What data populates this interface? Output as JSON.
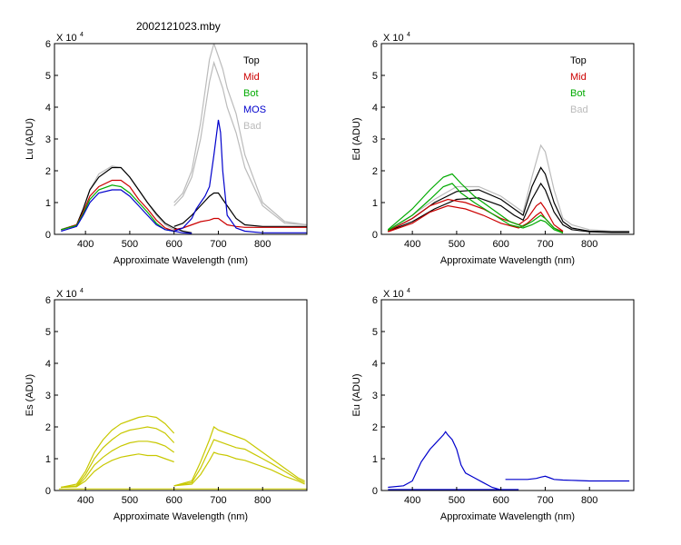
{
  "figure": {
    "title": "2002121023.mby"
  },
  "chart_data": [
    {
      "id": "lu",
      "type": "line",
      "ylabel": "Lu (ADU)",
      "xlabel": "Approximate Wavelength (nm)",
      "xlim": [
        330,
        900
      ],
      "ylim": [
        0,
        6
      ],
      "xticks": [
        "400",
        "500",
        "600",
        "700",
        "800"
      ],
      "yticks": [
        "0",
        "1",
        "2",
        "3",
        "4",
        "5",
        "6"
      ],
      "ymultiplier": "X 10",
      "ymultiplier_exp": "4",
      "legend": [
        {
          "label": "Top",
          "color": "#000000"
        },
        {
          "label": "Mid",
          "color": "#cc0000"
        },
        {
          "label": "Bot",
          "color": "#00aa00"
        },
        {
          "label": "MOS",
          "color": "#0000cc"
        },
        {
          "label": "Bad",
          "color": "#bbbbbb"
        }
      ],
      "series": [
        {
          "name": "Bad",
          "color": "#bbbbbb",
          "x": [
            345,
            380,
            395,
            410,
            430,
            460,
            480,
            500,
            520,
            540,
            560,
            580,
            600
          ],
          "y": [
            0.15,
            0.3,
            0.8,
            1.4,
            1.9,
            2.15,
            2.1,
            1.8,
            1.4,
            1.0,
            0.6,
            0.3,
            0.15
          ]
        },
        {
          "name": "Bad",
          "color": "#bbbbbb",
          "x": [
            600,
            620,
            640,
            660,
            680,
            690,
            700,
            710,
            720,
            740,
            760,
            800,
            850,
            900
          ],
          "y": [
            1.0,
            1.3,
            2.0,
            3.5,
            5.5,
            6.0,
            5.6,
            5.2,
            4.6,
            3.8,
            2.5,
            1.0,
            0.4,
            0.3
          ]
        },
        {
          "name": "Bad",
          "color": "#bbbbbb",
          "x": [
            600,
            620,
            640,
            660,
            680,
            690,
            700,
            710,
            720,
            740,
            760,
            800,
            850,
            900
          ],
          "y": [
            0.9,
            1.2,
            1.8,
            3.0,
            4.8,
            5.4,
            5.0,
            4.6,
            4.0,
            3.2,
            2.1,
            0.9,
            0.35,
            0.3
          ]
        },
        {
          "name": "Top",
          "color": "#000000",
          "x": [
            345,
            380,
            395,
            410,
            430,
            460,
            480,
            500,
            520,
            540,
            560,
            580,
            600,
            620,
            640
          ],
          "y": [
            0.15,
            0.3,
            0.8,
            1.4,
            1.8,
            2.1,
            2.1,
            1.8,
            1.4,
            1.0,
            0.65,
            0.35,
            0.2,
            0.1,
            0.05
          ]
        },
        {
          "name": "Top",
          "color": "#000000",
          "x": [
            600,
            620,
            640,
            660,
            680,
            690,
            700,
            710,
            720,
            740,
            760,
            800,
            850,
            900
          ],
          "y": [
            0.25,
            0.35,
            0.6,
            0.9,
            1.2,
            1.3,
            1.3,
            1.1,
            0.9,
            0.5,
            0.3,
            0.25,
            0.25,
            0.25
          ]
        },
        {
          "name": "Mid",
          "color": "#cc0000",
          "x": [
            345,
            380,
            395,
            410,
            430,
            460,
            480,
            500,
            520,
            540,
            560,
            580,
            600
          ],
          "y": [
            0.15,
            0.3,
            0.7,
            1.2,
            1.5,
            1.7,
            1.7,
            1.5,
            1.1,
            0.8,
            0.45,
            0.2,
            0.1
          ]
        },
        {
          "name": "Mid",
          "color": "#cc0000",
          "x": [
            600,
            620,
            640,
            660,
            680,
            690,
            700,
            710,
            720,
            740,
            760,
            800,
            850,
            900
          ],
          "y": [
            0.15,
            0.2,
            0.3,
            0.4,
            0.45,
            0.5,
            0.5,
            0.4,
            0.3,
            0.25,
            0.22,
            0.22,
            0.22,
            0.22
          ]
        },
        {
          "name": "Bot",
          "color": "#00aa00",
          "x": [
            345,
            380,
            395,
            410,
            430,
            460,
            480,
            500,
            520,
            540,
            560,
            580,
            600
          ],
          "y": [
            0.15,
            0.28,
            0.65,
            1.1,
            1.4,
            1.55,
            1.5,
            1.3,
            1.0,
            0.7,
            0.35,
            0.15,
            0.1
          ]
        },
        {
          "name": "MOS",
          "color": "#0000cc",
          "x": [
            345,
            380,
            395,
            410,
            430,
            460,
            480,
            500,
            520,
            540,
            560,
            580,
            600,
            620,
            640
          ],
          "y": [
            0.1,
            0.25,
            0.6,
            1.0,
            1.3,
            1.4,
            1.4,
            1.2,
            0.9,
            0.6,
            0.3,
            0.15,
            0.1,
            0.05,
            0.03
          ]
        },
        {
          "name": "MOS",
          "color": "#0000cc",
          "x": [
            600,
            620,
            640,
            650,
            660,
            670,
            680,
            690,
            700,
            705,
            710,
            720,
            740,
            760,
            800,
            850,
            900
          ],
          "y": [
            0.1,
            0.2,
            0.5,
            0.8,
            1.0,
            1.2,
            1.5,
            2.5,
            3.6,
            3.2,
            2.0,
            0.6,
            0.2,
            0.1,
            0.05,
            0.05,
            0.05
          ]
        }
      ]
    },
    {
      "id": "ed",
      "type": "line",
      "ylabel": "Ed (ADU)",
      "xlabel": "Approximate Wavelength (nm)",
      "xlim": [
        330,
        900
      ],
      "ylim": [
        0,
        6
      ],
      "xticks": [
        "400",
        "500",
        "600",
        "700",
        "800"
      ],
      "yticks": [
        "0",
        "1",
        "2",
        "3",
        "4",
        "5",
        "6"
      ],
      "ymultiplier": "X 10",
      "ymultiplier_exp": "4",
      "legend": [
        {
          "label": "Top",
          "color": "#000000"
        },
        {
          "label": "Mid",
          "color": "#cc0000"
        },
        {
          "label": "Bot",
          "color": "#00aa00"
        },
        {
          "label": "Bad",
          "color": "#bbbbbb"
        }
      ],
      "series": [
        {
          "name": "Bad",
          "color": "#bbbbbb",
          "x": [
            345,
            400,
            450,
            500,
            550,
            600,
            630,
            650,
            670,
            690,
            700,
            720,
            740,
            760,
            800,
            850,
            890
          ],
          "y": [
            0.15,
            0.6,
            1.1,
            1.5,
            1.5,
            1.2,
            0.9,
            0.7,
            1.8,
            2.8,
            2.6,
            1.4,
            0.5,
            0.3,
            0.15,
            0.1,
            0.1
          ]
        },
        {
          "name": "Top",
          "color": "#000000",
          "x": [
            345,
            400,
            450,
            500,
            550,
            600,
            630,
            650,
            670,
            690,
            700,
            720,
            740,
            760,
            800,
            850,
            890
          ],
          "y": [
            0.1,
            0.5,
            1.0,
            1.35,
            1.4,
            1.1,
            0.8,
            0.6,
            1.5,
            2.1,
            1.9,
            1.0,
            0.4,
            0.2,
            0.1,
            0.08,
            0.08
          ]
        },
        {
          "name": "Top",
          "color": "#000000",
          "x": [
            345,
            400,
            450,
            500,
            550,
            600,
            630,
            650,
            670,
            690,
            700,
            720,
            740,
            760,
            800,
            850,
            890
          ],
          "y": [
            0.1,
            0.4,
            0.8,
            1.1,
            1.15,
            0.9,
            0.6,
            0.45,
            1.1,
            1.6,
            1.4,
            0.7,
            0.3,
            0.15,
            0.08,
            0.06,
            0.06
          ]
        },
        {
          "name": "Mid",
          "color": "#cc0000",
          "x": [
            345,
            400,
            440,
            480,
            520,
            560,
            600,
            640,
            660,
            680,
            690,
            700,
            720,
            740
          ],
          "y": [
            0.1,
            0.5,
            0.9,
            1.1,
            1.0,
            0.8,
            0.5,
            0.3,
            0.5,
            0.9,
            1.0,
            0.8,
            0.3,
            0.1
          ]
        },
        {
          "name": "Mid",
          "color": "#cc0000",
          "x": [
            345,
            400,
            440,
            480,
            520,
            560,
            600,
            640,
            660,
            680,
            690,
            700,
            720,
            740
          ],
          "y": [
            0.08,
            0.35,
            0.7,
            0.9,
            0.8,
            0.6,
            0.35,
            0.2,
            0.35,
            0.6,
            0.7,
            0.5,
            0.2,
            0.08
          ]
        },
        {
          "name": "Bot",
          "color": "#00aa00",
          "x": [
            345,
            400,
            440,
            470,
            490,
            510,
            540,
            580,
            620,
            650,
            670,
            690,
            700,
            720,
            740
          ],
          "y": [
            0.15,
            0.8,
            1.4,
            1.8,
            1.9,
            1.6,
            1.2,
            0.8,
            0.4,
            0.25,
            0.4,
            0.6,
            0.5,
            0.2,
            0.05
          ]
        },
        {
          "name": "Bot",
          "color": "#00aa00",
          "x": [
            345,
            400,
            440,
            470,
            490,
            510,
            540,
            580,
            620,
            650,
            670,
            690,
            700,
            720,
            740
          ],
          "y": [
            0.12,
            0.6,
            1.1,
            1.5,
            1.6,
            1.3,
            1.0,
            0.65,
            0.3,
            0.2,
            0.3,
            0.45,
            0.4,
            0.15,
            0.04
          ]
        }
      ]
    },
    {
      "id": "es",
      "type": "line",
      "ylabel": "Es (ADU)",
      "xlabel": "Approximate Wavelength (nm)",
      "xlim": [
        330,
        900
      ],
      "ylim": [
        0,
        6
      ],
      "xticks": [
        "400",
        "500",
        "600",
        "700",
        "800"
      ],
      "yticks": [
        "0",
        "1",
        "2",
        "3",
        "4",
        "5",
        "6"
      ],
      "ymultiplier": "X 10",
      "ymultiplier_exp": "4",
      "legend": [],
      "series": [
        {
          "name": "Es",
          "color": "#c8c800",
          "x": [
            345,
            380,
            400,
            420,
            440,
            460,
            480,
            500,
            520,
            540,
            560,
            580,
            600
          ],
          "y": [
            0.1,
            0.2,
            0.6,
            1.2,
            1.6,
            1.9,
            2.1,
            2.2,
            2.3,
            2.35,
            2.3,
            2.1,
            1.8
          ]
        },
        {
          "name": "Es",
          "color": "#c8c800",
          "x": [
            345,
            380,
            400,
            420,
            440,
            460,
            480,
            500,
            520,
            540,
            560,
            580,
            600
          ],
          "y": [
            0.1,
            0.15,
            0.5,
            1.0,
            1.35,
            1.6,
            1.8,
            1.9,
            1.95,
            2.0,
            1.95,
            1.8,
            1.5
          ]
        },
        {
          "name": "Es",
          "color": "#c8c800",
          "x": [
            345,
            380,
            400,
            420,
            440,
            460,
            480,
            500,
            520,
            540,
            560,
            580,
            600
          ],
          "y": [
            0.1,
            0.13,
            0.4,
            0.8,
            1.05,
            1.25,
            1.4,
            1.5,
            1.55,
            1.55,
            1.5,
            1.4,
            1.2
          ]
        },
        {
          "name": "Es",
          "color": "#c8c800",
          "x": [
            345,
            380,
            400,
            420,
            440,
            460,
            480,
            500,
            520,
            540,
            560,
            580,
            600
          ],
          "y": [
            0.1,
            0.12,
            0.3,
            0.6,
            0.8,
            0.95,
            1.05,
            1.1,
            1.15,
            1.1,
            1.1,
            1.0,
            0.9
          ]
        },
        {
          "name": "Es",
          "color": "#c8c800",
          "x": [
            600,
            640,
            660,
            680,
            690,
            700,
            720,
            740,
            760,
            780,
            800,
            820,
            850,
            880,
            895
          ],
          "y": [
            0.15,
            0.3,
            0.9,
            1.6,
            2.0,
            1.9,
            1.8,
            1.7,
            1.6,
            1.4,
            1.2,
            1.0,
            0.7,
            0.4,
            0.3
          ]
        },
        {
          "name": "Es",
          "color": "#c8c800",
          "x": [
            600,
            640,
            660,
            680,
            690,
            700,
            720,
            740,
            760,
            780,
            800,
            820,
            850,
            880,
            895
          ],
          "y": [
            0.15,
            0.25,
            0.7,
            1.3,
            1.6,
            1.55,
            1.45,
            1.35,
            1.3,
            1.15,
            1.0,
            0.85,
            0.6,
            0.35,
            0.25
          ]
        },
        {
          "name": "Es",
          "color": "#c8c800",
          "x": [
            600,
            640,
            660,
            680,
            690,
            700,
            720,
            740,
            760,
            780,
            800,
            820,
            850,
            880,
            895
          ],
          "y": [
            0.15,
            0.2,
            0.5,
            0.95,
            1.2,
            1.15,
            1.1,
            1.0,
            0.95,
            0.85,
            0.75,
            0.65,
            0.45,
            0.3,
            0.2
          ]
        },
        {
          "name": "Es",
          "color": "#c8c800",
          "x": [
            340,
            900
          ],
          "y": [
            0.05,
            0.05
          ]
        }
      ]
    },
    {
      "id": "eu",
      "type": "line",
      "ylabel": "Eu (ADU)",
      "xlabel": "Approximate Wavelength (nm)",
      "xlim": [
        330,
        900
      ],
      "ylim": [
        0,
        6
      ],
      "xticks": [
        "400",
        "500",
        "600",
        "700",
        "800"
      ],
      "yticks": [
        "0",
        "1",
        "2",
        "3",
        "4",
        "5",
        "6"
      ],
      "ymultiplier": "X 10",
      "ymultiplier_exp": "4",
      "legend": [],
      "series": [
        {
          "name": "Eu",
          "color": "#0000cc",
          "x": [
            345,
            380,
            400,
            410,
            420,
            430,
            440,
            450,
            460,
            470,
            475,
            480,
            490,
            500,
            510,
            520,
            540,
            560,
            580,
            600
          ],
          "y": [
            0.1,
            0.15,
            0.3,
            0.6,
            0.9,
            1.1,
            1.3,
            1.45,
            1.6,
            1.75,
            1.85,
            1.75,
            1.6,
            1.3,
            0.8,
            0.55,
            0.4,
            0.25,
            0.1,
            0.02
          ]
        },
        {
          "name": "Eu",
          "color": "#0000cc",
          "x": [
            345,
            640
          ],
          "y": [
            0.03,
            0.03
          ]
        },
        {
          "name": "Eu",
          "color": "#0000cc",
          "x": [
            610,
            640,
            660,
            680,
            690,
            700,
            710,
            720,
            740,
            760,
            800,
            850,
            890
          ],
          "y": [
            0.35,
            0.35,
            0.35,
            0.38,
            0.42,
            0.45,
            0.4,
            0.35,
            0.33,
            0.32,
            0.3,
            0.3,
            0.3
          ]
        }
      ]
    }
  ]
}
